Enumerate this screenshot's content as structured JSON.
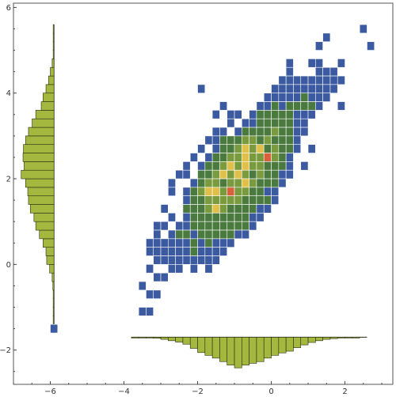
{
  "chart_data": {
    "type": "heatmap",
    "title": "",
    "xlabel": "",
    "ylabel": "",
    "xlim": [
      -7.0,
      3.3
    ],
    "ylim": [
      -2.8,
      6.1
    ],
    "x_ticks": [
      -6,
      -4,
      -2,
      0,
      2
    ],
    "y_ticks": [
      -2,
      0,
      2,
      4,
      6
    ],
    "x_tick_labels": [
      "−6",
      "−4",
      "−2",
      "0",
      "2"
    ],
    "y_tick_labels": [
      "−2",
      "0",
      "2",
      "4",
      "6"
    ],
    "bin_width": 0.2,
    "colors": {
      "low": "#3b5aa0",
      "mid": "#4a7a3e",
      "mid_high": "#7a9a3e",
      "high": "#e0c04a",
      "peak": "#d9603b",
      "histogram": "#a4b83f"
    },
    "density_bins": [
      [
        2.5,
        5.5,
        1
      ],
      [
        1.5,
        5.3,
        1
      ],
      [
        1.3,
        5.1,
        1
      ],
      [
        2.7,
        5.1,
        1
      ],
      [
        0.5,
        4.7,
        1
      ],
      [
        1.1,
        4.7,
        1
      ],
      [
        1.3,
        4.7,
        1
      ],
      [
        1.9,
        4.7,
        1
      ],
      [
        0.5,
        4.5,
        1
      ],
      [
        1.3,
        4.5,
        1
      ],
      [
        1.5,
        4.5,
        1
      ],
      [
        1.7,
        4.5,
        1
      ],
      [
        0.3,
        4.3,
        1
      ],
      [
        0.5,
        4.3,
        1
      ],
      [
        0.7,
        4.3,
        1
      ],
      [
        0.9,
        4.3,
        1
      ],
      [
        1.1,
        4.3,
        1
      ],
      [
        1.3,
        4.3,
        1
      ],
      [
        1.5,
        4.3,
        1
      ],
      [
        1.7,
        4.3,
        1
      ],
      [
        1.9,
        4.3,
        1
      ],
      [
        -1.9,
        4.1,
        1
      ],
      [
        0.1,
        4.1,
        1
      ],
      [
        0.3,
        4.1,
        1
      ],
      [
        0.5,
        4.1,
        1
      ],
      [
        0.7,
        4.1,
        1
      ],
      [
        0.9,
        4.1,
        1
      ],
      [
        1.1,
        4.1,
        1
      ],
      [
        1.3,
        4.1,
        1
      ],
      [
        1.5,
        4.1,
        1
      ],
      [
        1.7,
        4.1,
        1
      ],
      [
        -0.1,
        3.9,
        1
      ],
      [
        0.1,
        3.9,
        1
      ],
      [
        0.3,
        3.9,
        1
      ],
      [
        0.5,
        3.9,
        1
      ],
      [
        0.7,
        3.9,
        1
      ],
      [
        0.9,
        3.9,
        2
      ],
      [
        1.1,
        3.9,
        1
      ],
      [
        1.3,
        3.9,
        1
      ],
      [
        1.5,
        3.9,
        1
      ],
      [
        -1.3,
        3.7,
        1
      ],
      [
        -0.3,
        3.7,
        1
      ],
      [
        -0.1,
        3.7,
        1
      ],
      [
        0.1,
        3.7,
        2
      ],
      [
        0.3,
        3.7,
        1
      ],
      [
        0.5,
        3.7,
        2
      ],
      [
        0.7,
        3.7,
        2
      ],
      [
        0.9,
        3.7,
        2
      ],
      [
        1.1,
        3.7,
        2
      ],
      [
        1.3,
        3.7,
        1
      ],
      [
        1.9,
        3.7,
        1
      ],
      [
        -1.5,
        3.5,
        1
      ],
      [
        -1.1,
        3.5,
        1
      ],
      [
        -0.9,
        3.5,
        1
      ],
      [
        -0.5,
        3.5,
        1
      ],
      [
        -0.3,
        3.5,
        2
      ],
      [
        -0.1,
        3.5,
        2
      ],
      [
        0.1,
        3.5,
        2
      ],
      [
        0.3,
        3.5,
        2
      ],
      [
        0.5,
        3.5,
        2
      ],
      [
        0.7,
        3.5,
        1
      ],
      [
        0.9,
        3.5,
        1
      ],
      [
        1.1,
        3.5,
        1
      ],
      [
        -1.1,
        3.3,
        1
      ],
      [
        -0.7,
        3.3,
        1
      ],
      [
        -0.5,
        3.3,
        1
      ],
      [
        -0.3,
        3.3,
        2
      ],
      [
        -0.1,
        3.3,
        2
      ],
      [
        0.1,
        3.3,
        2
      ],
      [
        0.3,
        3.3,
        2
      ],
      [
        0.5,
        3.3,
        2
      ],
      [
        0.7,
        3.3,
        1
      ],
      [
        0.9,
        3.3,
        1
      ],
      [
        -1.5,
        3.1,
        1
      ],
      [
        -1.3,
        3.1,
        1
      ],
      [
        -0.9,
        3.1,
        1
      ],
      [
        -0.7,
        3.1,
        2
      ],
      [
        -0.5,
        3.1,
        2
      ],
      [
        -0.3,
        3.1,
        2
      ],
      [
        -0.1,
        3.1,
        2
      ],
      [
        0.1,
        3.1,
        3
      ],
      [
        0.3,
        3.1,
        2
      ],
      [
        0.5,
        3.1,
        2
      ],
      [
        0.7,
        3.1,
        1
      ],
      [
        0.9,
        3.1,
        1
      ],
      [
        -1.7,
        2.9,
        1
      ],
      [
        -1.5,
        2.9,
        1
      ],
      [
        -1.3,
        2.9,
        2
      ],
      [
        -1.1,
        2.9,
        2
      ],
      [
        -0.9,
        2.9,
        2
      ],
      [
        -0.7,
        2.9,
        3
      ],
      [
        -0.5,
        2.9,
        3
      ],
      [
        -0.3,
        2.9,
        2
      ],
      [
        -0.1,
        2.9,
        3
      ],
      [
        0.1,
        2.9,
        2
      ],
      [
        0.3,
        2.9,
        2
      ],
      [
        0.5,
        2.9,
        2
      ],
      [
        0.7,
        2.9,
        1
      ],
      [
        -1.9,
        2.7,
        1
      ],
      [
        -1.5,
        2.7,
        1
      ],
      [
        -1.3,
        2.7,
        2
      ],
      [
        -1.1,
        2.7,
        2
      ],
      [
        -0.9,
        2.7,
        3
      ],
      [
        -0.7,
        2.7,
        4
      ],
      [
        -0.5,
        2.7,
        3
      ],
      [
        -0.3,
        2.7,
        4
      ],
      [
        -0.1,
        2.7,
        2
      ],
      [
        0.1,
        2.7,
        3
      ],
      [
        0.3,
        2.7,
        2
      ],
      [
        0.5,
        2.7,
        2
      ],
      [
        0.7,
        2.7,
        1
      ],
      [
        1.1,
        2.7,
        1
      ],
      [
        -2.1,
        2.5,
        1
      ],
      [
        -1.7,
        2.5,
        1
      ],
      [
        -1.5,
        2.5,
        2
      ],
      [
        -1.3,
        2.5,
        2
      ],
      [
        -1.1,
        2.5,
        3
      ],
      [
        -0.9,
        2.5,
        3
      ],
      [
        -0.7,
        2.5,
        4
      ],
      [
        -0.5,
        2.5,
        3
      ],
      [
        -0.3,
        2.5,
        3
      ],
      [
        -0.1,
        2.5,
        5
      ],
      [
        0.1,
        2.5,
        3
      ],
      [
        0.3,
        2.5,
        2
      ],
      [
        0.5,
        2.5,
        1
      ],
      [
        -2.3,
        2.3,
        1
      ],
      [
        -1.9,
        2.3,
        1
      ],
      [
        -1.7,
        2.3,
        2
      ],
      [
        -1.5,
        2.3,
        2
      ],
      [
        -1.3,
        2.3,
        3
      ],
      [
        -1.1,
        2.3,
        4
      ],
      [
        -0.9,
        2.3,
        3
      ],
      [
        -0.7,
        2.3,
        4
      ],
      [
        -0.5,
        2.3,
        3
      ],
      [
        -0.3,
        2.3,
        3
      ],
      [
        -0.1,
        2.3,
        2
      ],
      [
        0.1,
        2.3,
        2
      ],
      [
        0.3,
        2.3,
        2
      ],
      [
        0.5,
        2.3,
        1
      ],
      [
        0.9,
        2.3,
        1
      ],
      [
        -2.5,
        2.1,
        1
      ],
      [
        -2.3,
        2.1,
        1
      ],
      [
        -1.9,
        2.1,
        2
      ],
      [
        -1.7,
        2.1,
        2
      ],
      [
        -1.5,
        2.1,
        3
      ],
      [
        -1.3,
        2.1,
        4
      ],
      [
        -1.1,
        2.1,
        3
      ],
      [
        -0.9,
        2.1,
        4
      ],
      [
        -0.7,
        2.1,
        3
      ],
      [
        -0.5,
        2.1,
        2
      ],
      [
        -0.3,
        2.1,
        3
      ],
      [
        -0.1,
        2.1,
        2
      ],
      [
        0.1,
        2.1,
        2
      ],
      [
        0.3,
        2.1,
        1
      ],
      [
        0.5,
        2.1,
        1
      ],
      [
        -2.7,
        1.9,
        1
      ],
      [
        -2.1,
        1.9,
        1
      ],
      [
        -1.9,
        1.9,
        2
      ],
      [
        -1.7,
        1.9,
        3
      ],
      [
        -1.5,
        1.9,
        3
      ],
      [
        -1.3,
        1.9,
        2
      ],
      [
        -1.1,
        1.9,
        3
      ],
      [
        -0.9,
        1.9,
        3
      ],
      [
        -0.7,
        1.9,
        4
      ],
      [
        -0.5,
        1.9,
        3
      ],
      [
        -0.3,
        1.9,
        2
      ],
      [
        -0.1,
        1.9,
        2
      ],
      [
        0.1,
        1.9,
        2
      ],
      [
        0.3,
        1.9,
        1
      ],
      [
        -2.7,
        1.7,
        1
      ],
      [
        -2.3,
        1.7,
        1
      ],
      [
        -2.1,
        1.7,
        2
      ],
      [
        -1.9,
        1.7,
        3
      ],
      [
        -1.7,
        1.7,
        4
      ],
      [
        -1.5,
        1.7,
        4
      ],
      [
        -1.3,
        1.7,
        3
      ],
      [
        -1.1,
        1.7,
        5
      ],
      [
        -0.9,
        1.7,
        3
      ],
      [
        -0.7,
        1.7,
        3
      ],
      [
        -0.5,
        1.7,
        2
      ],
      [
        -0.3,
        1.7,
        2
      ],
      [
        -0.1,
        1.7,
        1
      ],
      [
        0.1,
        1.7,
        1
      ],
      [
        -2.3,
        1.5,
        1
      ],
      [
        -2.1,
        1.5,
        2
      ],
      [
        -1.9,
        1.5,
        2
      ],
      [
        -1.7,
        1.5,
        3
      ],
      [
        -1.5,
        1.5,
        3
      ],
      [
        -1.3,
        1.5,
        3
      ],
      [
        -1.1,
        1.5,
        3
      ],
      [
        -0.9,
        1.5,
        3
      ],
      [
        -0.7,
        1.5,
        2
      ],
      [
        -0.5,
        1.5,
        2
      ],
      [
        -0.3,
        1.5,
        2
      ],
      [
        -0.1,
        1.5,
        2
      ],
      [
        0.1,
        1.5,
        1
      ],
      [
        -2.9,
        1.3,
        1
      ],
      [
        -2.3,
        1.3,
        2
      ],
      [
        -2.1,
        1.3,
        2
      ],
      [
        -1.9,
        1.3,
        2
      ],
      [
        -1.7,
        1.3,
        3
      ],
      [
        -1.5,
        1.3,
        4
      ],
      [
        -1.3,
        1.3,
        3
      ],
      [
        -1.1,
        1.3,
        2
      ],
      [
        -0.9,
        1.3,
        2
      ],
      [
        -0.7,
        1.3,
        2
      ],
      [
        -0.5,
        1.3,
        2
      ],
      [
        -0.3,
        1.3,
        1
      ],
      [
        -0.1,
        1.3,
        1
      ],
      [
        -2.7,
        1.1,
        1
      ],
      [
        -2.3,
        1.1,
        1
      ],
      [
        -2.1,
        1.1,
        2
      ],
      [
        -1.9,
        1.1,
        2
      ],
      [
        -1.7,
        1.1,
        2
      ],
      [
        -1.5,
        1.1,
        2
      ],
      [
        -1.3,
        1.1,
        2
      ],
      [
        -1.1,
        1.1,
        2
      ],
      [
        -0.9,
        1.1,
        2
      ],
      [
        -0.7,
        1.1,
        2
      ],
      [
        -0.5,
        1.1,
        1
      ],
      [
        -0.3,
        1.1,
        1
      ],
      [
        -3.1,
        0.9,
        1
      ],
      [
        -2.9,
        0.9,
        1
      ],
      [
        -2.5,
        0.9,
        1
      ],
      [
        -2.3,
        0.9,
        1
      ],
      [
        -2.1,
        0.9,
        2
      ],
      [
        -1.9,
        0.9,
        2
      ],
      [
        -1.7,
        0.9,
        2
      ],
      [
        -1.5,
        0.9,
        2
      ],
      [
        -1.3,
        0.9,
        2
      ],
      [
        -1.1,
        0.9,
        2
      ],
      [
        -0.9,
        0.9,
        2
      ],
      [
        -0.7,
        0.9,
        2
      ],
      [
        -0.5,
        0.9,
        1
      ],
      [
        -3.1,
        0.7,
        1
      ],
      [
        -2.7,
        0.7,
        1
      ],
      [
        -2.5,
        0.7,
        2
      ],
      [
        -2.3,
        0.7,
        2
      ],
      [
        -2.1,
        0.7,
        1
      ],
      [
        -1.9,
        0.7,
        2
      ],
      [
        -1.7,
        0.7,
        2
      ],
      [
        -1.5,
        0.7,
        2
      ],
      [
        -1.3,
        0.7,
        2
      ],
      [
        -1.1,
        0.7,
        2
      ],
      [
        -0.9,
        0.7,
        1
      ],
      [
        -0.7,
        0.7,
        1
      ],
      [
        -3.3,
        0.5,
        1
      ],
      [
        -3.1,
        0.5,
        1
      ],
      [
        -2.9,
        0.5,
        1
      ],
      [
        -2.7,
        0.5,
        1
      ],
      [
        -2.5,
        0.5,
        1
      ],
      [
        -2.3,
        0.5,
        1
      ],
      [
        -2.1,
        0.5,
        2
      ],
      [
        -1.9,
        0.5,
        1
      ],
      [
        -1.7,
        0.5,
        2
      ],
      [
        -1.5,
        0.5,
        1
      ],
      [
        -1.3,
        0.5,
        1
      ],
      [
        -1.1,
        0.5,
        1
      ],
      [
        -3.3,
        0.3,
        1
      ],
      [
        -3.1,
        0.3,
        1
      ],
      [
        -2.9,
        0.3,
        1
      ],
      [
        -2.7,
        0.3,
        1
      ],
      [
        -2.5,
        0.3,
        1
      ],
      [
        -2.3,
        0.3,
        1
      ],
      [
        -2.1,
        0.3,
        2
      ],
      [
        -1.9,
        0.3,
        1
      ],
      [
        -1.7,
        0.3,
        1
      ],
      [
        -1.5,
        0.3,
        1
      ],
      [
        -1.3,
        0.3,
        1
      ],
      [
        -3.1,
        0.1,
        1
      ],
      [
        -2.9,
        0.1,
        1
      ],
      [
        -2.7,
        0.1,
        1
      ],
      [
        -2.5,
        0.1,
        1
      ],
      [
        -2.3,
        0.1,
        1
      ],
      [
        -2.1,
        0.1,
        1
      ],
      [
        -1.9,
        0.1,
        1
      ],
      [
        -1.7,
        0.1,
        1
      ],
      [
        -1.5,
        0.1,
        1
      ],
      [
        -3.3,
        -0.1,
        1
      ],
      [
        -2.7,
        -0.1,
        1
      ],
      [
        -2.5,
        -0.1,
        1
      ],
      [
        -2.1,
        -0.1,
        1
      ],
      [
        -1.7,
        -0.1,
        1
      ],
      [
        -3.1,
        -0.3,
        1
      ],
      [
        -2.9,
        -0.3,
        1
      ],
      [
        -3.5,
        -0.5,
        1
      ],
      [
        -3.3,
        -0.7,
        1
      ],
      [
        -3.1,
        -0.7,
        1
      ],
      [
        -3.5,
        -1.1,
        1
      ],
      [
        -3.3,
        -1.1,
        1
      ],
      [
        -5.9,
        -1.5,
        1
      ]
    ],
    "x_marginal": {
      "baseline_y": -1.7,
      "bins": [
        [
          -3.7,
          0.01
        ],
        [
          -3.5,
          0.01
        ],
        [
          -3.3,
          0.02
        ],
        [
          -3.1,
          0.03
        ],
        [
          -2.9,
          0.06
        ],
        [
          -2.7,
          0.1
        ],
        [
          -2.5,
          0.14
        ],
        [
          -2.3,
          0.2
        ],
        [
          -2.1,
          0.32
        ],
        [
          -1.9,
          0.44
        ],
        [
          -1.7,
          0.52
        ],
        [
          -1.5,
          0.6
        ],
        [
          -1.3,
          0.7
        ],
        [
          -1.1,
          0.8
        ],
        [
          -0.9,
          0.88
        ],
        [
          -0.7,
          0.8
        ],
        [
          -0.5,
          0.75
        ],
        [
          -0.3,
          0.7
        ],
        [
          -0.1,
          0.6
        ],
        [
          0.1,
          0.52
        ],
        [
          0.3,
          0.45
        ],
        [
          0.5,
          0.4
        ],
        [
          0.7,
          0.3
        ],
        [
          0.9,
          0.22
        ],
        [
          1.1,
          0.15
        ],
        [
          1.3,
          0.1
        ],
        [
          1.5,
          0.06
        ],
        [
          1.7,
          0.04
        ],
        [
          1.9,
          0.02
        ],
        [
          2.1,
          0.01
        ],
        [
          2.3,
          0.01
        ]
      ]
    },
    "y_marginal": {
      "baseline_x": -5.9,
      "bins": [
        [
          -1.5,
          0.01
        ],
        [
          -1.3,
          0.01
        ],
        [
          -1.1,
          0.01
        ],
        [
          -0.9,
          0.01
        ],
        [
          -0.7,
          0.02
        ],
        [
          -0.5,
          0.03
        ],
        [
          -0.3,
          0.05
        ],
        [
          -0.1,
          0.12
        ],
        [
          0.1,
          0.2
        ],
        [
          0.3,
          0.22
        ],
        [
          0.5,
          0.3
        ],
        [
          0.7,
          0.4
        ],
        [
          0.9,
          0.5
        ],
        [
          1.1,
          0.55
        ],
        [
          1.3,
          0.65
        ],
        [
          1.5,
          0.7
        ],
        [
          1.7,
          0.72
        ],
        [
          1.9,
          0.78
        ],
        [
          2.1,
          0.9
        ],
        [
          2.3,
          0.82
        ],
        [
          2.5,
          0.85
        ],
        [
          2.7,
          0.84
        ],
        [
          2.9,
          0.78
        ],
        [
          3.1,
          0.7
        ],
        [
          3.3,
          0.6
        ],
        [
          3.5,
          0.5
        ],
        [
          3.7,
          0.35
        ],
        [
          3.9,
          0.3
        ],
        [
          4.1,
          0.22
        ],
        [
          4.3,
          0.15
        ],
        [
          4.5,
          0.1
        ],
        [
          4.7,
          0.05
        ],
        [
          4.9,
          0.02
        ],
        [
          5.1,
          0.01
        ],
        [
          5.3,
          0.01
        ],
        [
          5.5,
          0.01
        ]
      ]
    }
  }
}
